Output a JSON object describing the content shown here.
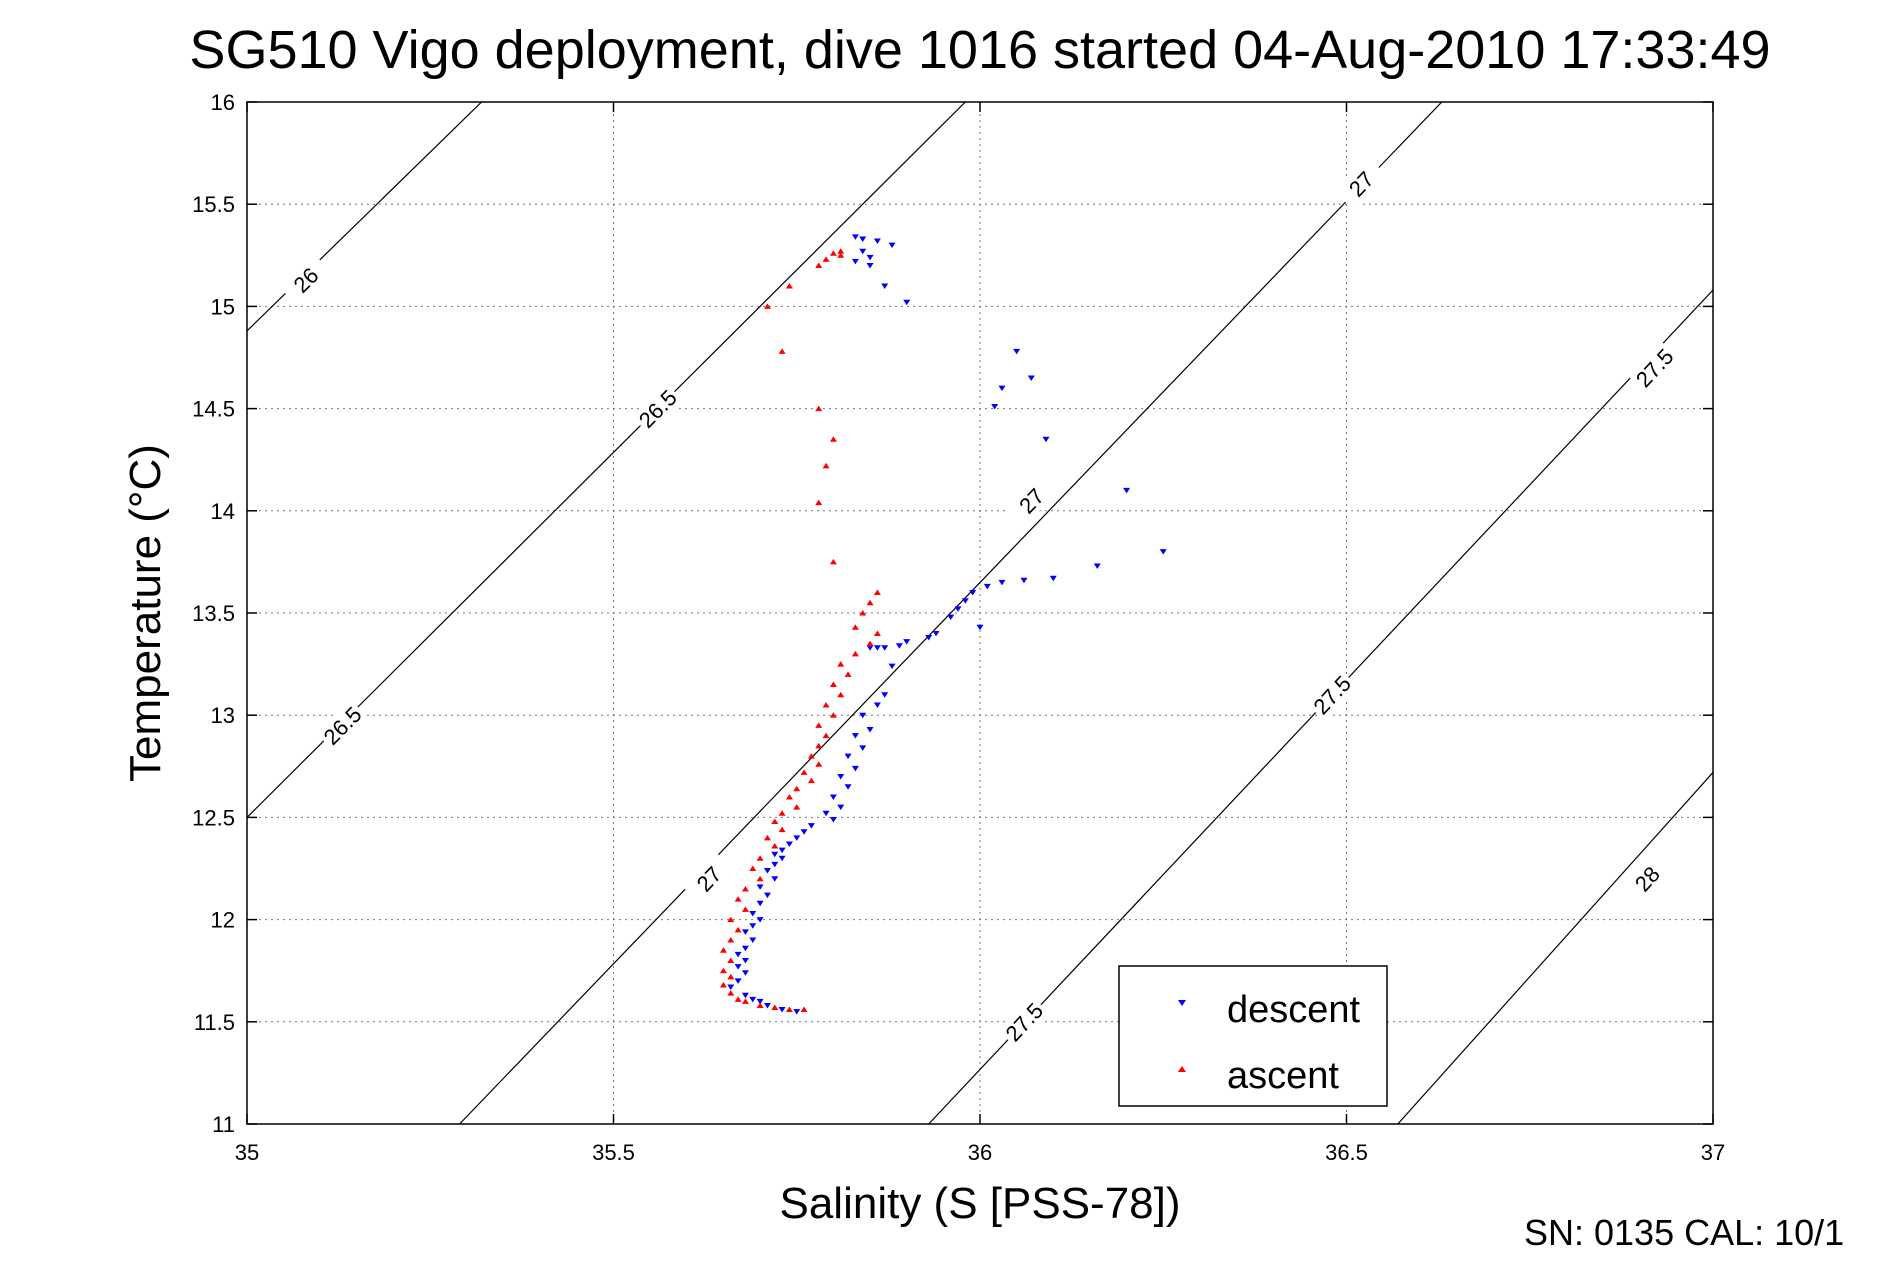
{
  "chart_data": {
    "type": "scatter",
    "title": "SG510 Vigo deployment, dive 1016 started 04-Aug-2010 17:33:49",
    "xlabel": "Salinity (S [PSS-78])",
    "ylabel": "Temperature (°C)",
    "xlim": [
      35,
      37
    ],
    "ylim": [
      11,
      16
    ],
    "grid": true,
    "legend_position": "bottom-right",
    "x_ticks": [
      "35",
      "35.5",
      "36",
      "36.5",
      "37"
    ],
    "y_ticks": [
      "11",
      "11.5",
      "12",
      "12.5",
      "13",
      "13.5",
      "14",
      "14.5",
      "15",
      "15.5",
      "16"
    ],
    "footer": "SN: 0135  CAL: 10/1",
    "density_contours": [
      {
        "level": "26",
        "points": [
          [
            35,
            14.88
          ],
          [
            35.32,
            16
          ]
        ],
        "labels": [
          [
            35.08,
            15.13
          ]
        ]
      },
      {
        "level": "26.5",
        "points": [
          [
            35,
            12.5
          ],
          [
            35.98,
            16
          ]
        ],
        "labels": [
          [
            35.13,
            12.95
          ],
          [
            35.56,
            14.5
          ]
        ]
      },
      {
        "level": "27",
        "points": [
          [
            35.29,
            11
          ],
          [
            36.63,
            16
          ]
        ],
        "labels": [
          [
            35.63,
            12.2
          ],
          [
            36.07,
            14.05
          ],
          [
            36.52,
            15.6
          ]
        ]
      },
      {
        "level": "27.5",
        "points": [
          [
            35.93,
            11
          ],
          [
            37,
            15.08
          ]
        ],
        "labels": [
          [
            36.06,
            11.5
          ],
          [
            36.48,
            13.1
          ],
          [
            36.92,
            14.7
          ]
        ]
      },
      {
        "level": "28",
        "points": [
          [
            36.57,
            11
          ],
          [
            37,
            12.72
          ]
        ],
        "labels": [
          [
            36.91,
            12.2
          ]
        ]
      }
    ],
    "series": [
      {
        "name": "descent",
        "color": "#0000ff",
        "marker": "triangle-down",
        "points": [
          [
            35.83,
            15.34
          ],
          [
            35.84,
            15.33
          ],
          [
            35.86,
            15.32
          ],
          [
            35.88,
            15.3
          ],
          [
            35.84,
            15.27
          ],
          [
            35.85,
            15.24
          ],
          [
            35.83,
            15.22
          ],
          [
            35.85,
            15.2
          ],
          [
            35.87,
            15.1
          ],
          [
            35.9,
            15.02
          ],
          [
            36.05,
            14.78
          ],
          [
            36.07,
            14.65
          ],
          [
            36.03,
            14.6
          ],
          [
            36.02,
            14.51
          ],
          [
            36.09,
            14.35
          ],
          [
            36.2,
            14.1
          ],
          [
            36.25,
            13.8
          ],
          [
            36.16,
            13.73
          ],
          [
            36.1,
            13.67
          ],
          [
            36.06,
            13.66
          ],
          [
            36.03,
            13.65
          ],
          [
            36.01,
            13.63
          ],
          [
            35.99,
            13.6
          ],
          [
            35.98,
            13.56
          ],
          [
            35.97,
            13.52
          ],
          [
            35.96,
            13.48
          ],
          [
            36.0,
            13.43
          ],
          [
            35.94,
            13.4
          ],
          [
            35.93,
            13.38
          ],
          [
            35.9,
            13.36
          ],
          [
            35.89,
            13.34
          ],
          [
            35.87,
            13.33
          ],
          [
            35.86,
            13.33
          ],
          [
            35.85,
            13.33
          ],
          [
            35.88,
            13.24
          ],
          [
            35.87,
            13.1
          ],
          [
            35.86,
            13.05
          ],
          [
            35.84,
            13.0
          ],
          [
            35.85,
            12.93
          ],
          [
            35.83,
            12.9
          ],
          [
            35.84,
            12.84
          ],
          [
            35.82,
            12.8
          ],
          [
            35.83,
            12.74
          ],
          [
            35.81,
            12.7
          ],
          [
            35.82,
            12.65
          ],
          [
            35.8,
            12.6
          ],
          [
            35.81,
            12.55
          ],
          [
            35.79,
            12.52
          ],
          [
            35.8,
            12.49
          ],
          [
            35.77,
            12.46
          ],
          [
            35.76,
            12.43
          ],
          [
            35.75,
            12.4
          ],
          [
            35.74,
            12.37
          ],
          [
            35.73,
            12.34
          ],
          [
            35.72,
            12.32
          ],
          [
            35.73,
            12.3
          ],
          [
            35.72,
            12.27
          ],
          [
            35.71,
            12.24
          ],
          [
            35.72,
            12.2
          ],
          [
            35.7,
            12.16
          ],
          [
            35.71,
            12.12
          ],
          [
            35.7,
            12.08
          ],
          [
            35.69,
            12.03
          ],
          [
            35.7,
            12.0
          ],
          [
            35.69,
            11.97
          ],
          [
            35.68,
            11.94
          ],
          [
            35.69,
            11.9
          ],
          [
            35.68,
            11.86
          ],
          [
            35.67,
            11.83
          ],
          [
            35.68,
            11.8
          ],
          [
            35.67,
            11.77
          ],
          [
            35.68,
            11.74
          ],
          [
            35.67,
            11.7
          ],
          [
            35.66,
            11.67
          ],
          [
            35.68,
            11.63
          ],
          [
            35.69,
            11.61
          ],
          [
            35.7,
            11.6
          ],
          [
            35.71,
            11.58
          ],
          [
            35.73,
            11.56
          ],
          [
            35.75,
            11.55
          ]
        ]
      },
      {
        "name": "ascent",
        "color": "#ff0000",
        "marker": "triangle-up",
        "points": [
          [
            35.81,
            15.27
          ],
          [
            35.8,
            15.26
          ],
          [
            35.81,
            15.25
          ],
          [
            35.79,
            15.23
          ],
          [
            35.78,
            15.2
          ],
          [
            35.74,
            15.1
          ],
          [
            35.71,
            15.0
          ],
          [
            35.73,
            14.78
          ],
          [
            35.78,
            14.5
          ],
          [
            35.8,
            14.35
          ],
          [
            35.79,
            14.22
          ],
          [
            35.78,
            14.04
          ],
          [
            35.8,
            13.75
          ],
          [
            35.86,
            13.6
          ],
          [
            35.85,
            13.55
          ],
          [
            35.84,
            13.5
          ],
          [
            35.83,
            13.43
          ],
          [
            35.86,
            13.4
          ],
          [
            35.85,
            13.35
          ],
          [
            35.83,
            13.3
          ],
          [
            35.81,
            13.25
          ],
          [
            35.82,
            13.2
          ],
          [
            35.8,
            13.15
          ],
          [
            35.81,
            13.1
          ],
          [
            35.79,
            13.05
          ],
          [
            35.8,
            13.0
          ],
          [
            35.78,
            12.95
          ],
          [
            35.79,
            12.9
          ],
          [
            35.78,
            12.85
          ],
          [
            35.77,
            12.8
          ],
          [
            35.78,
            12.76
          ],
          [
            35.76,
            12.72
          ],
          [
            35.77,
            12.68
          ],
          [
            35.75,
            12.64
          ],
          [
            35.74,
            12.6
          ],
          [
            35.75,
            12.55
          ],
          [
            35.73,
            12.52
          ],
          [
            35.72,
            12.48
          ],
          [
            35.73,
            12.44
          ],
          [
            35.71,
            12.4
          ],
          [
            35.72,
            12.36
          ],
          [
            35.7,
            12.3
          ],
          [
            35.69,
            12.25
          ],
          [
            35.7,
            12.2
          ],
          [
            35.68,
            12.15
          ],
          [
            35.67,
            12.1
          ],
          [
            35.68,
            12.05
          ],
          [
            35.66,
            12.0
          ],
          [
            35.67,
            11.95
          ],
          [
            35.66,
            11.9
          ],
          [
            35.65,
            11.85
          ],
          [
            35.66,
            11.8
          ],
          [
            35.65,
            11.75
          ],
          [
            35.66,
            11.72
          ],
          [
            35.65,
            11.68
          ],
          [
            35.66,
            11.64
          ],
          [
            35.67,
            11.61
          ],
          [
            35.68,
            11.6
          ],
          [
            35.7,
            11.58
          ],
          [
            35.72,
            11.57
          ],
          [
            35.74,
            11.56
          ],
          [
            35.76,
            11.56
          ]
        ]
      }
    ]
  }
}
